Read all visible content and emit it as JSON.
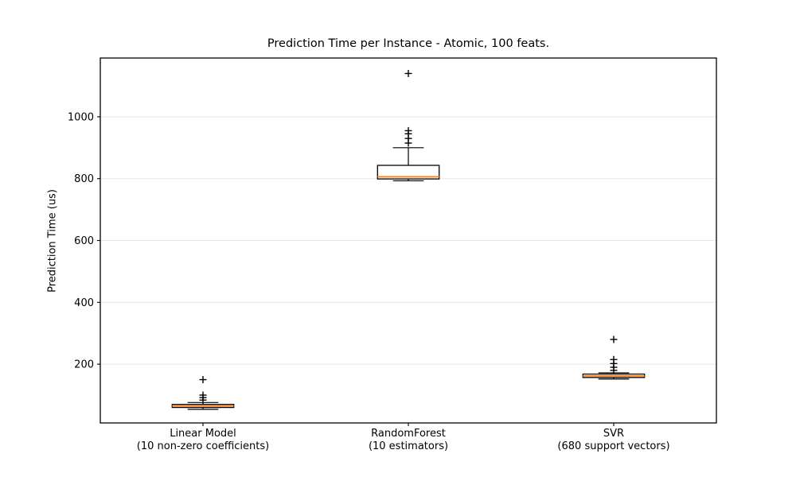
{
  "chart_data": {
    "type": "boxplot",
    "title": "Prediction Time per Instance - Atomic, 100 feats.",
    "ylabel": "Prediction Time (us)",
    "xlabel": "",
    "yticks": [
      200,
      400,
      600,
      800,
      1000
    ],
    "ylim": [
      10,
      1190
    ],
    "grid": "horizontal",
    "legend": "none",
    "categories": [
      {
        "label_line1": "Linear Model",
        "label_line2": "(10 non-zero coefficients)"
      },
      {
        "label_line1": "RandomForest",
        "label_line2": "(10 estimators)"
      },
      {
        "label_line1": "SVR",
        "label_line2": "(680 support vectors)"
      }
    ],
    "boxes": [
      {
        "name": "Linear Model",
        "whisker_low": 54,
        "q1": 60,
        "median": 65,
        "q3": 70,
        "whisker_high": 76,
        "outliers": [
          84,
          92,
          100,
          150
        ]
      },
      {
        "name": "RandomForest",
        "whisker_low": 793,
        "q1": 799,
        "median": 806,
        "q3": 843,
        "whisker_high": 900,
        "outliers": [
          915,
          930,
          945,
          955,
          1140
        ]
      },
      {
        "name": "SVR",
        "whisker_low": 152,
        "q1": 157,
        "median": 162,
        "q3": 168,
        "whisker_high": 172,
        "outliers": [
          180,
          190,
          202,
          215,
          280
        ]
      }
    ],
    "colors": {
      "box": "#000000",
      "median": "#ff7f0e",
      "whisker": "#000000",
      "flier": "#000000",
      "grid": "#e8e8e8",
      "spine": "#000000",
      "background": "#ffffff"
    }
  }
}
